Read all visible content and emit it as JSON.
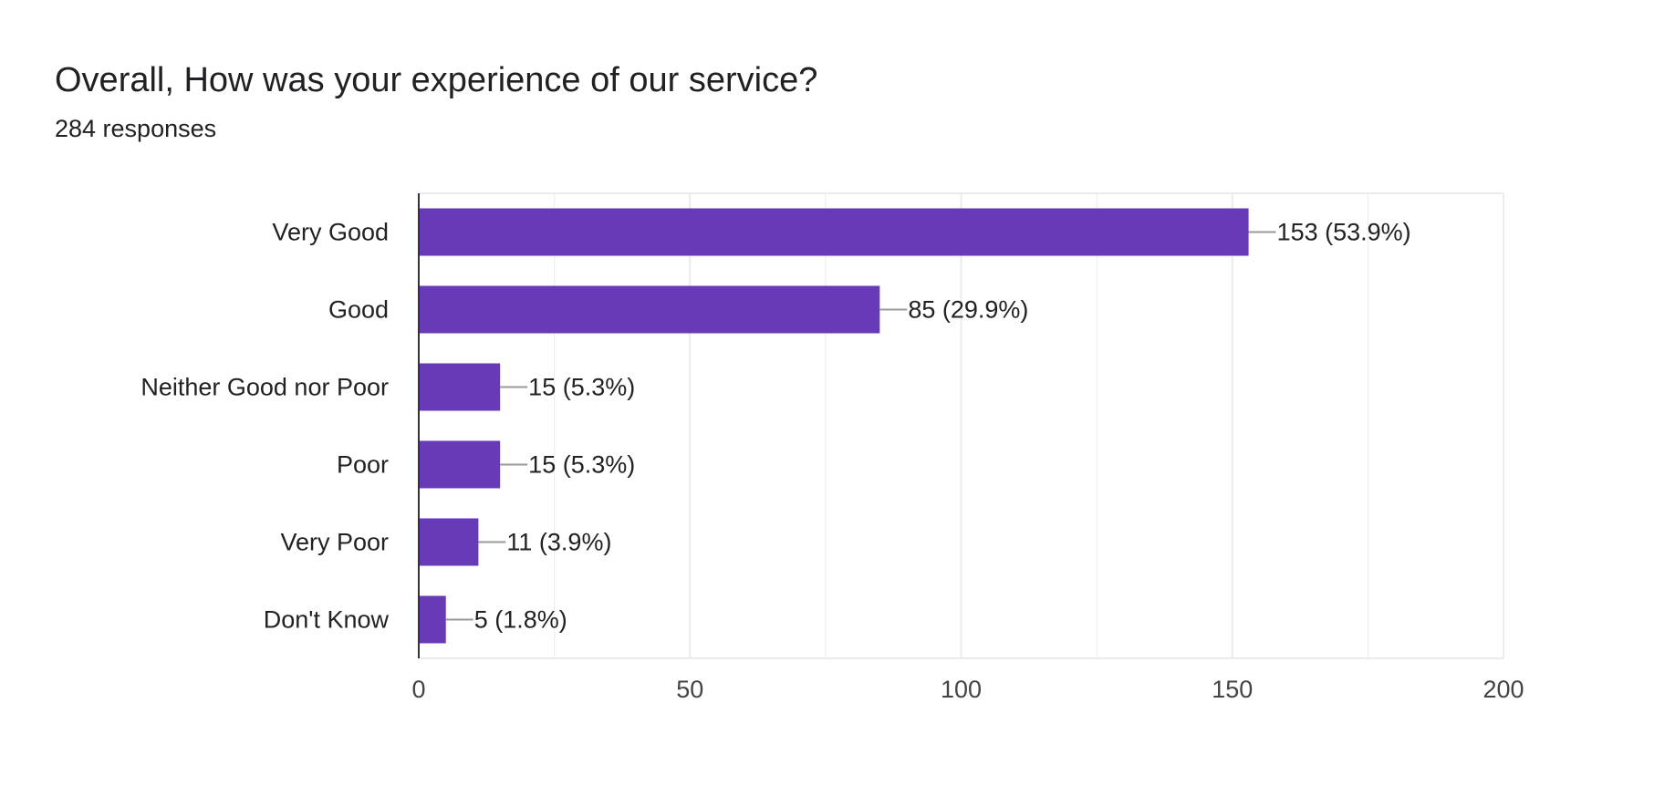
{
  "header": {
    "title": "Overall, How was your experience of our service?",
    "responses": "284 responses"
  },
  "colors": {
    "bar": "#673ab7",
    "grid": "#ebebeb",
    "axis": "#333333",
    "leader": "#999999"
  },
  "chart_data": {
    "type": "bar",
    "orientation": "horizontal",
    "categories": [
      "Very Good",
      "Good",
      "Neither Good nor Poor",
      "Poor",
      "Very Poor",
      "Don't Know"
    ],
    "values": [
      153,
      85,
      15,
      15,
      11,
      5
    ],
    "data_labels": [
      "153 (53.9%)",
      "85 (29.9%)",
      "15 (5.3%)",
      "15 (5.3%)",
      "11 (3.9%)",
      "5 (1.8%)"
    ],
    "xlim": [
      0,
      200
    ],
    "x_ticks": [
      0,
      50,
      100,
      150,
      200
    ],
    "grid": true,
    "legend": "none"
  }
}
